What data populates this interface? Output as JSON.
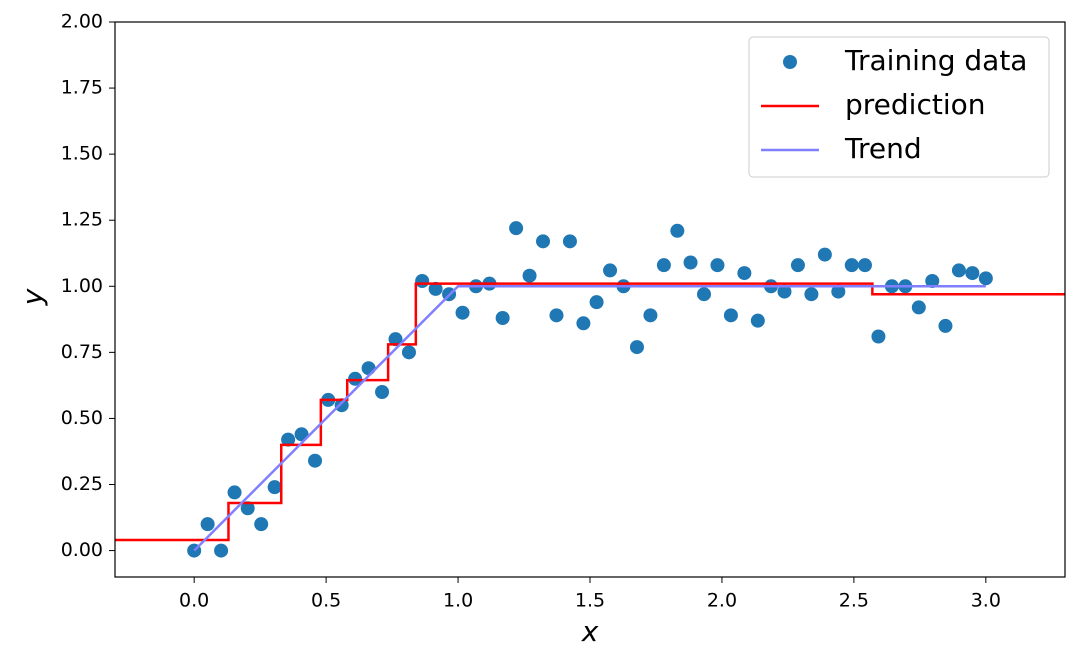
{
  "chart_data": {
    "type": "scatter",
    "xlabel": "x",
    "ylabel": "y",
    "xlim": [
      -0.3,
      3.3
    ],
    "ylim": [
      -0.1,
      2.0
    ],
    "xticks": [
      {
        "value": 0,
        "label": "0.0"
      },
      {
        "value": 0.5,
        "label": "0.5"
      },
      {
        "value": 1,
        "label": "1.0"
      },
      {
        "value": 1.5,
        "label": "1.5"
      },
      {
        "value": 2,
        "label": "2.0"
      },
      {
        "value": 2.5,
        "label": "2.5"
      },
      {
        "value": 3,
        "label": "3.0"
      }
    ],
    "yticks": [
      {
        "value": 0,
        "label": "0.00"
      },
      {
        "value": 0.25,
        "label": "0.25"
      },
      {
        "value": 0.5,
        "label": "0.50"
      },
      {
        "value": 0.75,
        "label": "0.75"
      },
      {
        "value": 1,
        "label": "1.00"
      },
      {
        "value": 1.25,
        "label": "1.25"
      },
      {
        "value": 1.5,
        "label": "1.50"
      },
      {
        "value": 1.75,
        "label": "1.75"
      },
      {
        "value": 2,
        "label": "2.00"
      }
    ],
    "grid": false,
    "legend": "upper right",
    "series": [
      {
        "name": "Training data",
        "type": "scatter",
        "color": "#1f77b4",
        "x": [
          0,
          0.051,
          0.102,
          0.153,
          0.203,
          0.254,
          0.305,
          0.356,
          0.407,
          0.458,
          0.508,
          0.559,
          0.61,
          0.661,
          0.712,
          0.763,
          0.814,
          0.864,
          0.915,
          0.966,
          1.017,
          1.068,
          1.119,
          1.169,
          1.22,
          1.271,
          1.322,
          1.373,
          1.424,
          1.475,
          1.525,
          1.576,
          1.627,
          1.678,
          1.729,
          1.78,
          1.831,
          1.881,
          1.932,
          1.983,
          2.034,
          2.085,
          2.136,
          2.186,
          2.237,
          2.288,
          2.339,
          2.39,
          2.441,
          2.492,
          2.542,
          2.593,
          2.644,
          2.695,
          2.746,
          2.797,
          2.847,
          2.898,
          2.949,
          3.0
        ],
        "values": [
          0.0,
          0.1,
          0.0,
          0.22,
          0.16,
          0.1,
          0.24,
          0.42,
          0.44,
          0.34,
          0.57,
          0.55,
          0.65,
          0.69,
          0.6,
          0.8,
          0.75,
          1.02,
          0.99,
          0.97,
          0.9,
          1.0,
          1.01,
          0.88,
          1.22,
          1.04,
          1.17,
          0.89,
          1.17,
          0.86,
          0.94,
          1.06,
          1.0,
          0.77,
          0.89,
          1.08,
          1.21,
          1.09,
          0.97,
          1.08,
          0.89,
          1.05,
          0.87,
          1.0,
          0.98,
          1.08,
          0.97,
          1.12,
          0.98,
          1.08,
          1.08,
          0.81,
          1.0,
          1.0,
          0.92,
          1.02,
          0.85,
          1.06,
          1.05,
          1.03
        ]
      },
      {
        "name": "prediction",
        "type": "line",
        "color": "#ff0000",
        "x": [
          -0.3,
          0.13,
          0.13,
          0.33,
          0.33,
          0.48,
          0.48,
          0.58,
          0.58,
          0.735,
          0.735,
          0.84,
          0.84,
          2.57,
          2.57,
          3.3
        ],
        "values": [
          0.04,
          0.04,
          0.18,
          0.18,
          0.4,
          0.4,
          0.57,
          0.57,
          0.645,
          0.645,
          0.78,
          0.78,
          1.01,
          1.01,
          0.97,
          0.97
        ]
      },
      {
        "name": "Trend",
        "type": "line",
        "color": "#7f7fff",
        "x": [
          0,
          1,
          3
        ],
        "values": [
          0,
          1,
          1
        ]
      }
    ]
  }
}
